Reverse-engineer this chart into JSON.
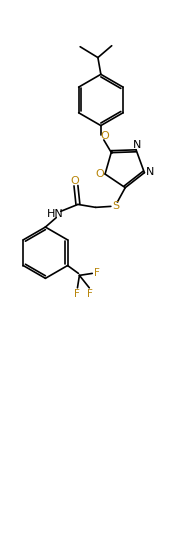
{
  "background_color": "#ffffff",
  "line_color": "#000000",
  "o_color": "#b8860b",
  "s_color": "#b8860b",
  "n_color": "#000000",
  "f_color": "#b8860b",
  "line_width": 1.2,
  "figsize": [
    1.82,
    5.35
  ],
  "dpi": 100,
  "xlim": [
    0,
    9
  ],
  "ylim": [
    0,
    27
  ]
}
